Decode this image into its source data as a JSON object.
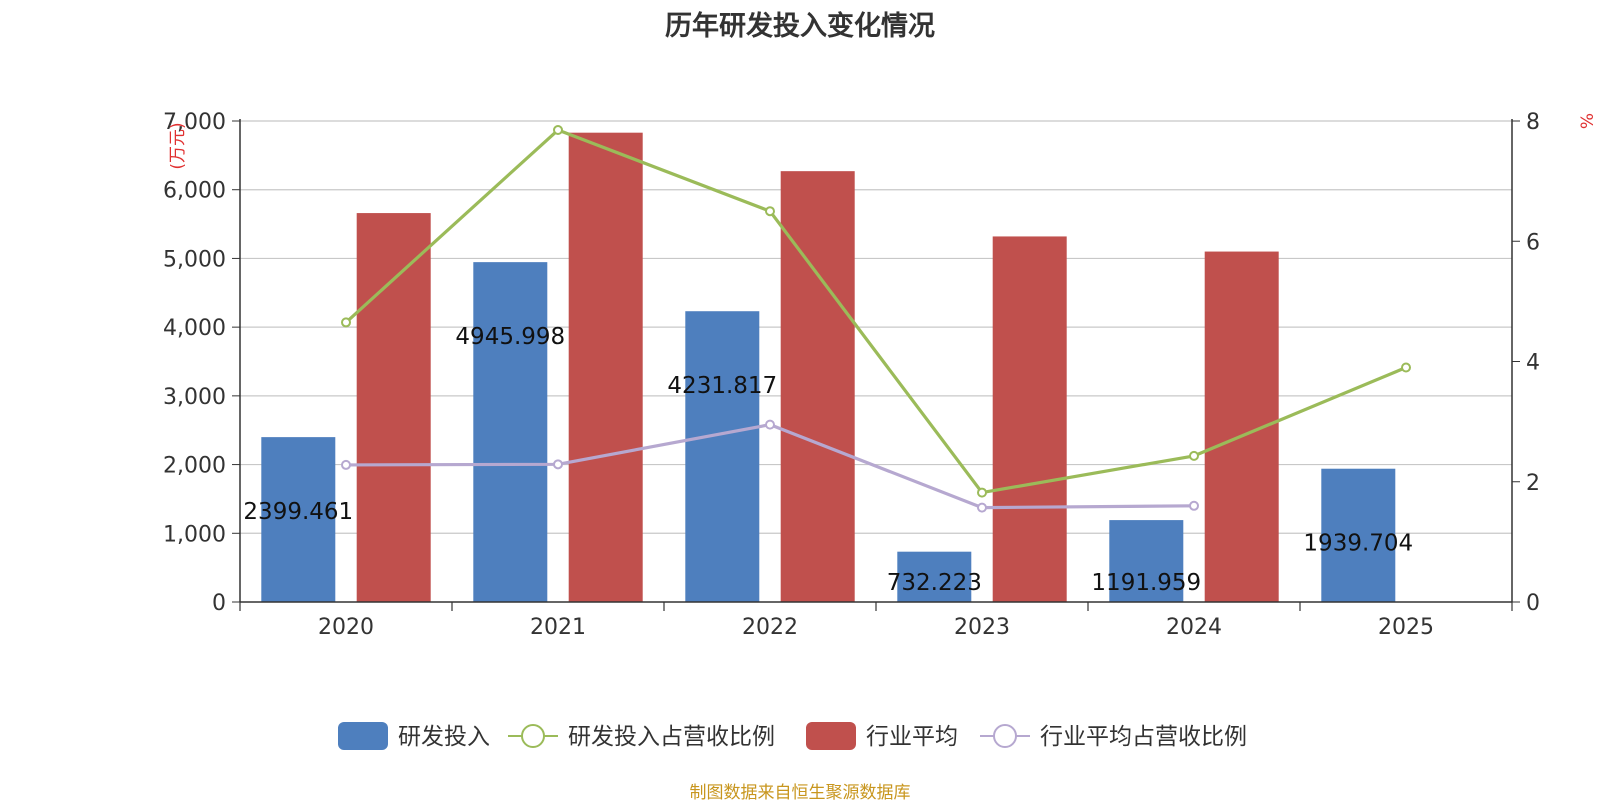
{
  "chart_data": {
    "type": "bar",
    "title": "历年研发投入变化情况",
    "source": "制图数据来自恒生聚源数据库",
    "ylabel_left": "(万元)",
    "ylabel_right": "%",
    "categories": [
      "2020",
      "2021",
      "2022",
      "2023",
      "2024",
      "2025"
    ],
    "y_left": {
      "min": 0,
      "max": 7000,
      "ticks": [
        0,
        1000,
        2000,
        3000,
        4000,
        5000,
        6000,
        7000
      ],
      "tick_labels": [
        "0",
        "1,000",
        "2,000",
        "3,000",
        "4,000",
        "5,000",
        "6,000",
        "7,000"
      ]
    },
    "y_right": {
      "min": 0,
      "max": 8,
      "ticks": [
        0,
        2,
        4,
        6,
        8
      ],
      "tick_labels": [
        "0",
        "2",
        "4",
        "6",
        "8"
      ]
    },
    "grid": true,
    "legend_position": "bottom",
    "series": [
      {
        "name": "研发投入",
        "kind": "bar",
        "axis": "left",
        "color": "#4e7fbe",
        "values": [
          2399.461,
          4945.998,
          4231.817,
          732.223,
          1191.959,
          1939.704
        ],
        "labels": [
          "2399.461",
          "4945.998",
          "4231.817",
          "732.223",
          "1191.959",
          "1939.704"
        ]
      },
      {
        "name": "研发投入占营收比例",
        "kind": "line",
        "axis": "right",
        "color": "#9bbb59",
        "values": [
          4.65,
          7.85,
          6.5,
          1.82,
          2.43,
          3.9
        ]
      },
      {
        "name": "行业平均",
        "kind": "bar",
        "axis": "left",
        "color": "#c0504d",
        "values": [
          5660,
          6830,
          6270,
          5320,
          5100,
          null
        ]
      },
      {
        "name": "行业平均占营收比例",
        "kind": "line",
        "axis": "right",
        "color": "#b6a8d0",
        "values": [
          2.28,
          2.29,
          2.95,
          1.57,
          1.6,
          null
        ]
      }
    ]
  }
}
